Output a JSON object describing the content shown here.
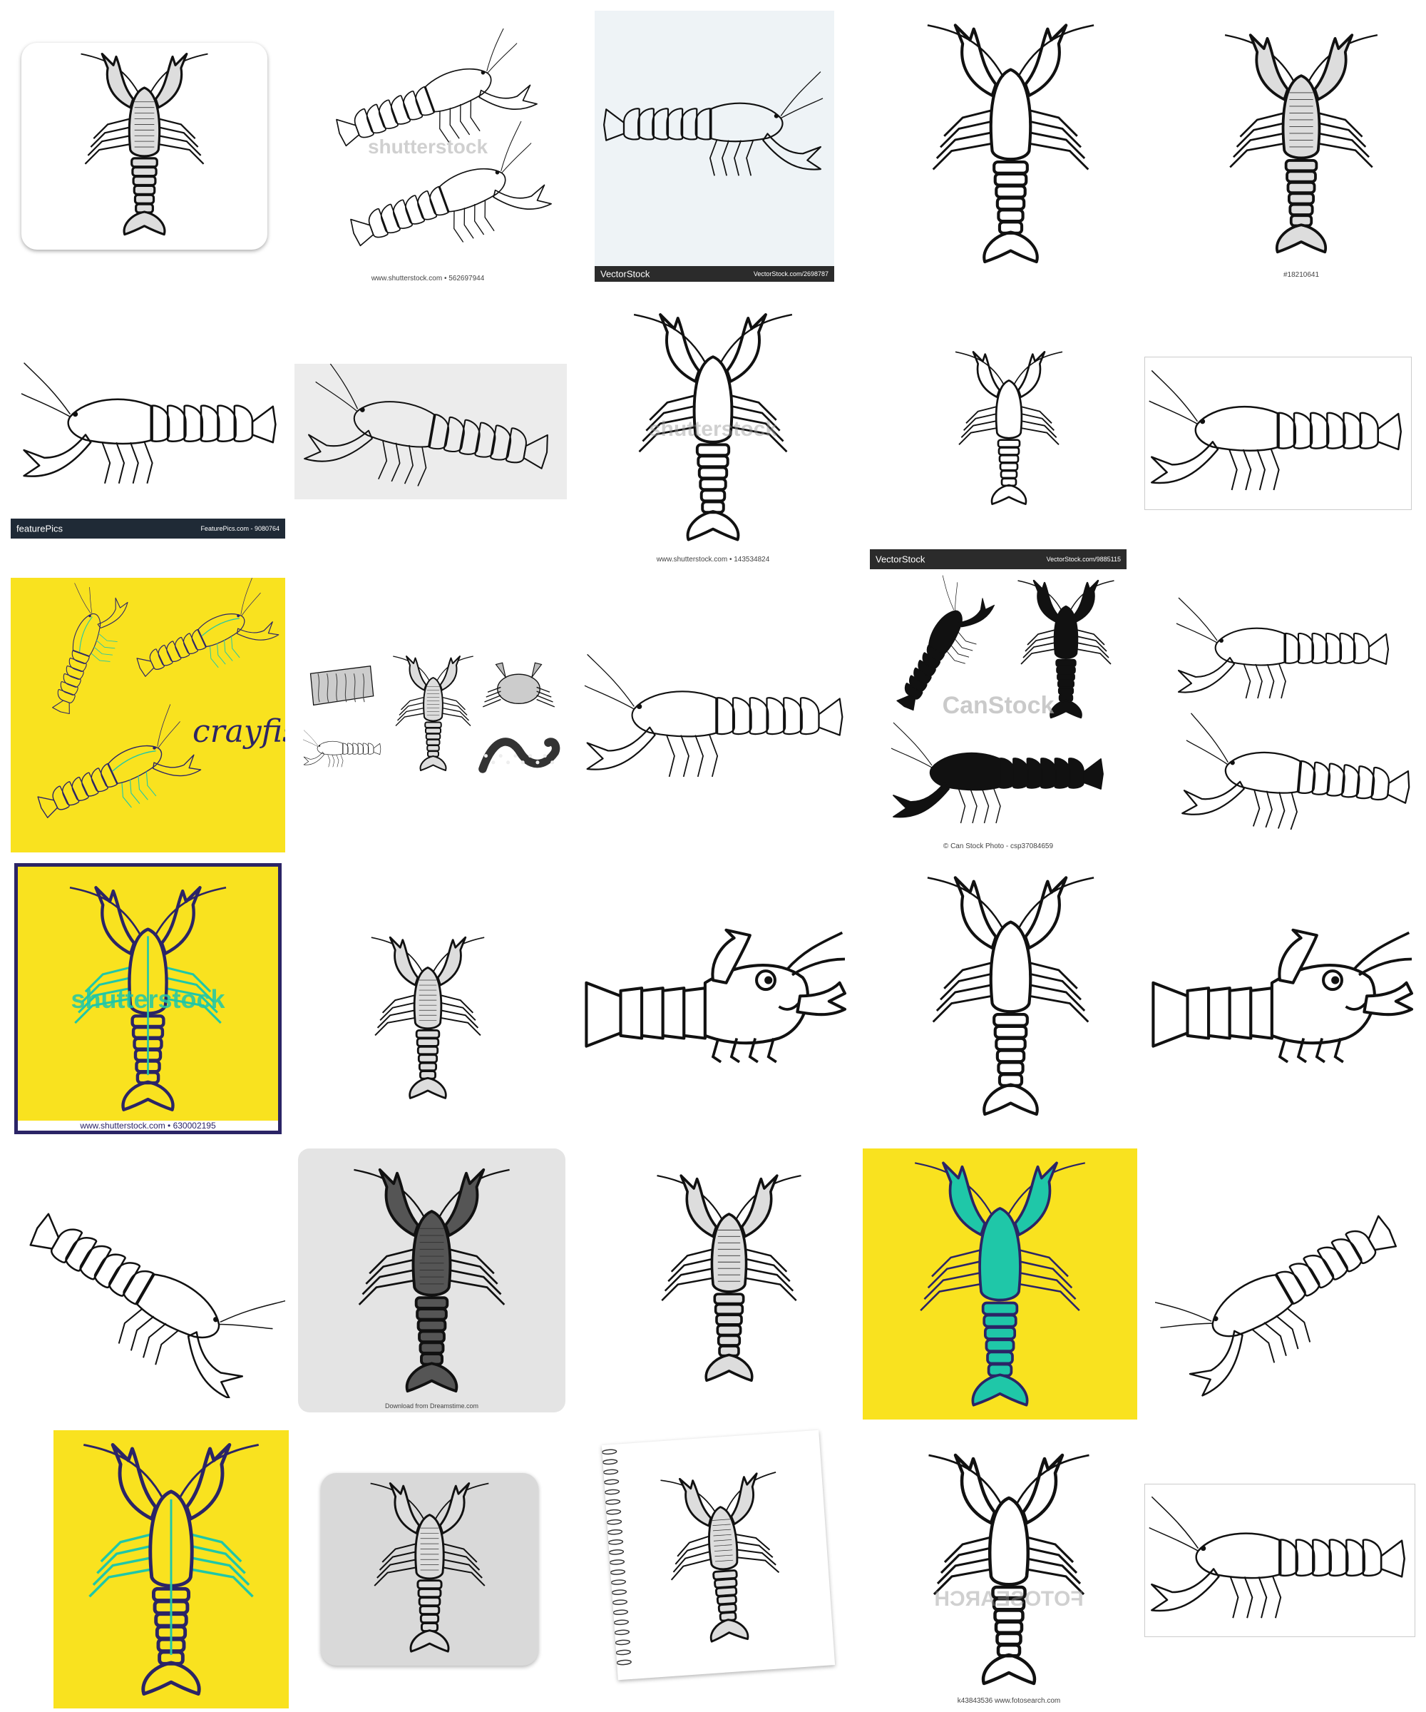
{
  "captions": {
    "c2": "www.shutterstock.com • 562697944",
    "c5": "#18210641",
    "c8": "www.shutterstock.com • 143534824",
    "c16": "www.shutterstock.com • 630002195",
    "c14": "© Can Stock Photo - csp37084659",
    "c29": "k43843536 www.fotosearch.com",
    "c22": "Download from Dreamstime.com"
  },
  "bars": {
    "vs1_brand": "VectorStock",
    "vs1_id": "VectorStock.com/2698787",
    "fp_brand": "featurePics",
    "fp_id": "FeaturePics.com - 9080764",
    "vs2_brand": "VectorStock",
    "vs2_id": "VectorStock.com/9885115"
  },
  "overlays": {
    "crayfish_text": "crayfish",
    "wm_shutterstock": "shutterstock",
    "wm_canstock": "CanStock",
    "wm_fotosearch": "FOTOSEARCH"
  },
  "colors": {
    "yellow": "#f9e21f",
    "teal": "#1fc7a8",
    "navy": "#2b2466",
    "ink": "#111111"
  }
}
